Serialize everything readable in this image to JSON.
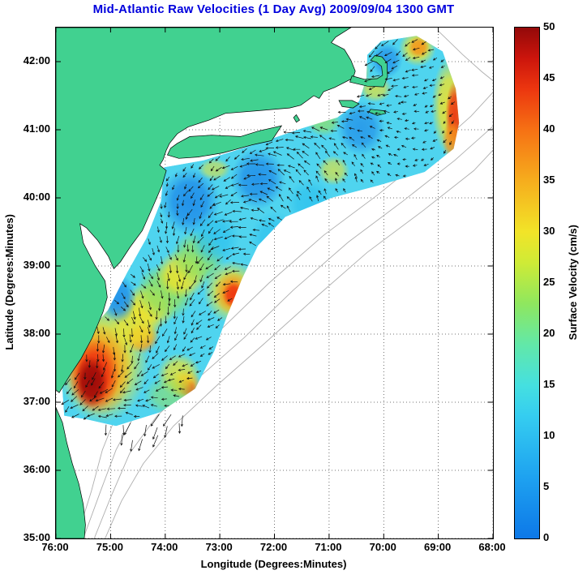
{
  "chart_data": {
    "type": "heatmap",
    "subtype": "geographic_vector_field_map",
    "title": "Mid-Atlantic Raw Velocities (1 Day Avg) 2009/09/04 1300 GMT",
    "title_color": "#0000dd",
    "xlabel": "Longitude (Degrees:Minutes)",
    "ylabel": "Latitude (Degrees:Minutes)",
    "xlim": [
      76,
      68
    ],
    "ylim": [
      35,
      42.5
    ],
    "x": {
      "tick_values": [
        76,
        75,
        74,
        73,
        72,
        71,
        70,
        69,
        68
      ],
      "tick_labels": [
        "76:00",
        "75:00",
        "74:00",
        "73:00",
        "72:00",
        "71:00",
        "70:00",
        "69:00",
        "68:00"
      ]
    },
    "y": {
      "tick_values": [
        35,
        36,
        37,
        38,
        39,
        40,
        41,
        42
      ],
      "tick_labels": [
        "35:00",
        "36:00",
        "37:00",
        "38:00",
        "39:00",
        "40:00",
        "41:00",
        "42:00"
      ]
    },
    "grid": {
      "on": true,
      "style": "dotted",
      "color": "#4a4a4a"
    },
    "colorbar": {
      "label": "Surface Velocity (cm/s)",
      "range": [
        0,
        50
      ],
      "tick_values": [
        0,
        5,
        10,
        15,
        20,
        25,
        30,
        35,
        40,
        45,
        50
      ],
      "colormap": [
        {
          "v": 0,
          "c": "#0d78e8"
        },
        {
          "v": 6,
          "c": "#1ea2f0"
        },
        {
          "v": 12,
          "c": "#35cdf0"
        },
        {
          "v": 15,
          "c": "#45e0e0"
        },
        {
          "v": 19,
          "c": "#62e8a8"
        },
        {
          "v": 23,
          "c": "#8fe75e"
        },
        {
          "v": 27,
          "c": "#cfeb36"
        },
        {
          "v": 30,
          "c": "#f2e428"
        },
        {
          "v": 35,
          "c": "#f6ad1d"
        },
        {
          "v": 40,
          "c": "#f67114"
        },
        {
          "v": 44,
          "c": "#ec360f"
        },
        {
          "v": 47,
          "c": "#cc150c"
        },
        {
          "v": 50,
          "c": "#930909"
        }
      ]
    },
    "field": {
      "units": "cm/s",
      "base_velocity": 13,
      "base_color": "#4fd4ef",
      "palette": {
        "darkred": "#990808",
        "red": "#ee2d0f",
        "orange": "#f6931a",
        "yellow": "#f0e32a",
        "green": "#93e05f",
        "cyan2": "#2fc2ee",
        "blue": "#1b86e8"
      },
      "palette_values_cms": {
        "darkred": 48,
        "red": 43,
        "orange": 35,
        "yellow": 28,
        "green": 21,
        "cyan2": 11,
        "blue": 7
      },
      "coverage_polygon": [
        [
          75.85,
          36.8
        ],
        [
          75.9,
          37.4
        ],
        [
          75.6,
          37.85
        ],
        [
          75.05,
          38.35
        ],
        [
          74.7,
          38.9
        ],
        [
          74.35,
          39.4
        ],
        [
          74.08,
          39.95
        ],
        [
          74.02,
          40.45
        ],
        [
          73.3,
          40.55
        ],
        [
          72.3,
          40.8
        ],
        [
          71.5,
          41.02
        ],
        [
          70.85,
          41.18
        ],
        [
          70.45,
          41.42
        ],
        [
          70.32,
          41.75
        ],
        [
          70.3,
          42.1
        ],
        [
          70.05,
          42.3
        ],
        [
          69.4,
          42.38
        ],
        [
          68.92,
          42.15
        ],
        [
          68.68,
          41.6
        ],
        [
          68.62,
          41.1
        ],
        [
          68.72,
          40.72
        ],
        [
          69.25,
          40.38
        ],
        [
          70.1,
          40.18
        ],
        [
          70.95,
          40.0
        ],
        [
          71.8,
          39.72
        ],
        [
          72.3,
          39.3
        ],
        [
          72.6,
          38.8
        ],
        [
          72.85,
          38.3
        ],
        [
          73.1,
          37.75
        ],
        [
          73.45,
          37.2
        ],
        [
          74.1,
          36.85
        ],
        [
          74.9,
          36.65
        ],
        [
          75.45,
          36.75
        ]
      ],
      "features": [
        [
          75.15,
          37.6,
          0.85,
          0.9,
          "yellow",
          0.95
        ],
        [
          75.22,
          37.48,
          0.62,
          0.68,
          "orange",
          0.95
        ],
        [
          75.3,
          37.4,
          0.46,
          0.54,
          "red",
          0.95
        ],
        [
          75.35,
          37.3,
          0.3,
          0.38,
          "darkred",
          0.95
        ],
        [
          74.42,
          37.95,
          0.3,
          0.24,
          "orange",
          0.9
        ],
        [
          74.55,
          38.12,
          0.48,
          0.38,
          "yellow",
          0.85
        ],
        [
          74.3,
          38.4,
          0.5,
          0.35,
          "yellow",
          0.9
        ],
        [
          74.0,
          38.62,
          0.55,
          0.42,
          "green",
          0.9
        ],
        [
          73.7,
          38.88,
          0.48,
          0.36,
          "yellow",
          0.9
        ],
        [
          73.4,
          39.12,
          0.5,
          0.4,
          "green",
          0.85
        ],
        [
          72.78,
          38.62,
          0.52,
          0.46,
          "yellow",
          0.85
        ],
        [
          72.76,
          38.6,
          0.34,
          0.32,
          "orange",
          0.9
        ],
        [
          72.75,
          38.58,
          0.2,
          0.2,
          "red",
          0.9
        ],
        [
          73.55,
          39.95,
          0.55,
          0.5,
          "blue",
          0.85
        ],
        [
          72.3,
          40.28,
          0.5,
          0.45,
          "blue",
          0.8
        ],
        [
          74.85,
          38.52,
          0.32,
          0.36,
          "blue",
          0.8
        ],
        [
          70.42,
          41.02,
          0.45,
          0.4,
          "blue",
          0.7
        ],
        [
          69.95,
          42.02,
          0.3,
          0.26,
          "blue",
          0.7
        ],
        [
          71.35,
          39.92,
          0.42,
          0.36,
          "cyan2",
          0.8
        ],
        [
          73.1,
          39.4,
          0.45,
          0.4,
          "cyan2",
          0.8
        ],
        [
          72.0,
          39.4,
          0.45,
          0.4,
          "cyan2",
          0.75
        ],
        [
          68.8,
          41.35,
          0.32,
          0.72,
          "yellow",
          0.9
        ],
        [
          68.7,
          41.2,
          0.17,
          0.52,
          "red",
          0.9
        ],
        [
          68.75,
          40.85,
          0.18,
          0.3,
          "orange",
          0.85
        ],
        [
          70.6,
          41.85,
          0.36,
          0.26,
          "yellow",
          0.8
        ],
        [
          70.15,
          41.6,
          0.3,
          0.2,
          "yellow",
          0.7
        ],
        [
          69.38,
          42.2,
          0.34,
          0.27,
          "yellow",
          0.85
        ],
        [
          69.36,
          42.21,
          0.2,
          0.16,
          "orange",
          0.9
        ],
        [
          70.92,
          40.4,
          0.3,
          0.22,
          "yellow",
          0.65
        ],
        [
          71.1,
          41.12,
          0.32,
          0.22,
          "green",
          0.7
        ],
        [
          73.1,
          40.42,
          0.3,
          0.16,
          "yellow",
          0.6
        ],
        [
          73.62,
          37.25,
          0.28,
          0.22,
          "orange",
          0.85
        ],
        [
          73.6,
          37.22,
          0.16,
          0.13,
          "red",
          0.85
        ],
        [
          73.75,
          37.4,
          0.4,
          0.32,
          "yellow",
          0.8
        ],
        [
          73.9,
          37.1,
          0.5,
          0.3,
          "green",
          0.6
        ]
      ]
    },
    "vectors": {
      "color": "#111111",
      "grid_spacing_px": 11,
      "base_bearing": "WSW",
      "note": "black current arrows over radar coverage; long SSW arrow fan near 75W 36.8N",
      "fan_zone": [
        [
          75.35,
          37.2
        ],
        [
          75.05,
          36.55
        ],
        [
          74.3,
          36.35
        ],
        [
          73.55,
          36.75
        ],
        [
          73.95,
          37.05
        ],
        [
          74.65,
          37.0
        ]
      ]
    }
  },
  "map": {
    "land_color": "#41d190",
    "coast_color": "#000000",
    "ocean_color": "#ffffff",
    "bathymetry_color": "#aeaeae",
    "land": {
      "mainland": [
        [
          76.0,
          42.5
        ],
        [
          70.6,
          42.5
        ],
        [
          70.88,
          42.36
        ],
        [
          70.96,
          42.28
        ],
        [
          70.72,
          42.18
        ],
        [
          70.6,
          42.02
        ],
        [
          70.52,
          41.86
        ],
        [
          70.56,
          41.76
        ],
        [
          70.9,
          41.62
        ],
        [
          71.1,
          41.56
        ],
        [
          71.18,
          41.46
        ],
        [
          71.28,
          41.5
        ],
        [
          71.38,
          41.44
        ],
        [
          71.52,
          41.36
        ],
        [
          71.72,
          41.32
        ],
        [
          72.3,
          41.28
        ],
        [
          72.9,
          41.24
        ],
        [
          73.2,
          41.14
        ],
        [
          73.58,
          41.04
        ],
        [
          73.78,
          40.94
        ],
        [
          73.92,
          40.8
        ],
        [
          73.98,
          40.7
        ],
        [
          74.04,
          40.56
        ],
        [
          74.1,
          40.48
        ],
        [
          73.98,
          40.4
        ],
        [
          74.06,
          40.18
        ],
        [
          74.22,
          39.88
        ],
        [
          74.42,
          39.52
        ],
        [
          74.64,
          39.28
        ],
        [
          74.82,
          39.06
        ],
        [
          74.94,
          38.96
        ],
        [
          75.04,
          39.14
        ],
        [
          75.24,
          39.38
        ],
        [
          75.44,
          39.56
        ],
        [
          75.56,
          39.62
        ],
        [
          75.5,
          39.34
        ],
        [
          75.28,
          39.0
        ],
        [
          75.1,
          38.78
        ],
        [
          75.06,
          38.54
        ],
        [
          75.14,
          38.32
        ],
        [
          75.34,
          37.94
        ],
        [
          75.54,
          37.64
        ],
        [
          75.74,
          37.4
        ],
        [
          75.94,
          37.14
        ],
        [
          76.0,
          37.18
        ]
      ],
      "cape_cod": [
        [
          70.62,
          41.7
        ],
        [
          70.3,
          41.64
        ],
        [
          70.0,
          41.63
        ],
        [
          69.93,
          41.78
        ],
        [
          69.94,
          41.98
        ],
        [
          70.03,
          42.07
        ],
        [
          70.16,
          42.09
        ],
        [
          70.24,
          42.02
        ],
        [
          70.13,
          41.99
        ],
        [
          70.04,
          41.93
        ],
        [
          70.02,
          41.8
        ],
        [
          70.12,
          41.75
        ],
        [
          70.35,
          41.74
        ],
        [
          70.58,
          41.79
        ]
      ],
      "long_island": [
        [
          73.96,
          40.63
        ],
        [
          73.75,
          40.58
        ],
        [
          73.4,
          40.6
        ],
        [
          72.95,
          40.66
        ],
        [
          72.4,
          40.78
        ],
        [
          72.05,
          40.84
        ],
        [
          71.87,
          41.06
        ],
        [
          72.3,
          40.98
        ],
        [
          72.62,
          40.9
        ],
        [
          73.15,
          40.92
        ],
        [
          73.55,
          40.9
        ],
        [
          73.78,
          40.8
        ],
        [
          73.9,
          40.73
        ]
      ],
      "outer_banks": [
        [
          76.0,
          36.92
        ],
        [
          75.88,
          36.7
        ],
        [
          75.8,
          36.4
        ],
        [
          75.7,
          36.1
        ],
        [
          75.58,
          35.8
        ],
        [
          75.5,
          35.5
        ],
        [
          75.46,
          35.2
        ],
        [
          75.48,
          35.0
        ],
        [
          76.0,
          35.0
        ]
      ],
      "marthas_vineyard": [
        [
          70.82,
          41.43
        ],
        [
          70.58,
          41.43
        ],
        [
          70.45,
          41.38
        ],
        [
          70.56,
          41.32
        ],
        [
          70.76,
          41.34
        ]
      ],
      "nantucket": [
        [
          70.24,
          41.3
        ],
        [
          70.0,
          41.28
        ],
        [
          69.96,
          41.24
        ],
        [
          70.12,
          41.21
        ],
        [
          70.27,
          41.26
        ]
      ],
      "block_island": [
        [
          71.6,
          41.22
        ],
        [
          71.54,
          41.14
        ],
        [
          71.6,
          41.11
        ],
        [
          71.65,
          41.18
        ]
      ]
    },
    "bathymetry": [
      [
        [
          75.5,
          35.0
        ],
        [
          75.18,
          35.7
        ],
        [
          74.9,
          36.3
        ],
        [
          74.5,
          36.9
        ],
        [
          73.8,
          37.45
        ],
        [
          73.0,
          38.05
        ],
        [
          72.1,
          38.75
        ],
        [
          71.1,
          39.45
        ],
        [
          70.1,
          40.05
        ],
        [
          69.1,
          40.7
        ],
        [
          68.4,
          41.2
        ],
        [
          68.0,
          41.55
        ]
      ],
      [
        [
          75.3,
          35.0
        ],
        [
          75.0,
          35.6
        ],
        [
          74.65,
          36.25
        ],
        [
          74.15,
          36.8
        ],
        [
          73.4,
          37.35
        ],
        [
          72.55,
          37.95
        ],
        [
          71.65,
          38.65
        ],
        [
          70.65,
          39.35
        ],
        [
          69.65,
          39.95
        ],
        [
          68.7,
          40.55
        ],
        [
          68.0,
          41.05
        ]
      ],
      [
        [
          75.1,
          35.0
        ],
        [
          74.8,
          35.55
        ],
        [
          74.4,
          36.1
        ],
        [
          73.85,
          36.65
        ],
        [
          73.05,
          37.25
        ],
        [
          72.2,
          37.85
        ],
        [
          71.3,
          38.5
        ],
        [
          70.3,
          39.2
        ],
        [
          69.3,
          39.8
        ],
        [
          68.35,
          40.4
        ],
        [
          68.0,
          40.7
        ]
      ],
      [
        [
          75.62,
          35.0
        ],
        [
          75.35,
          35.7
        ],
        [
          75.15,
          36.3
        ],
        [
          74.9,
          36.8
        ],
        [
          74.55,
          37.2
        ]
      ],
      [
        [
          69.0,
          42.45
        ],
        [
          68.55,
          42.1
        ],
        [
          68.2,
          41.85
        ],
        [
          68.0,
          41.72
        ]
      ]
    ]
  }
}
